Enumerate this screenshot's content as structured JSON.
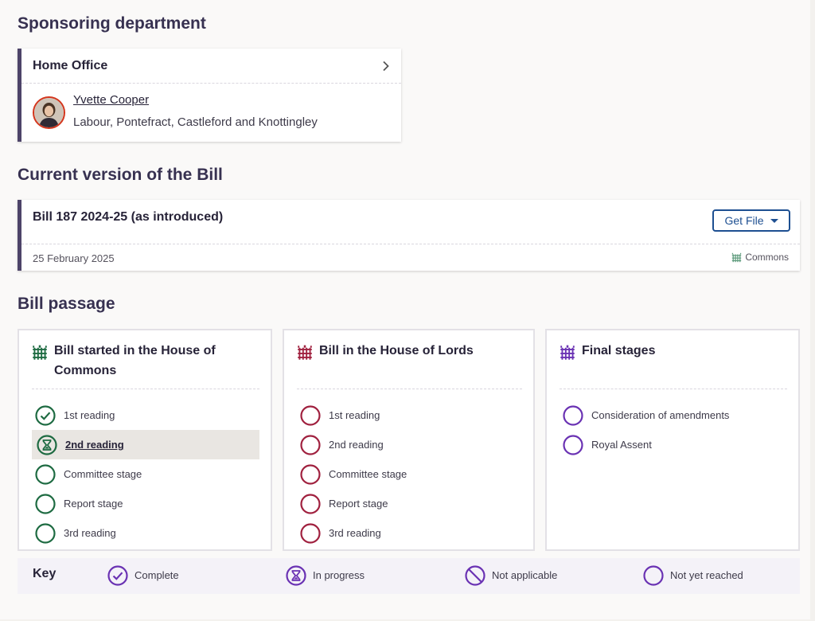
{
  "sponsoring": {
    "heading": "Sponsoring department",
    "department": "Home Office",
    "member_name": "Yvette Cooper",
    "member_party": "Labour, Pontefract, Castleford and Knottingley"
  },
  "current_version": {
    "heading": "Current version of the Bill",
    "title": "Bill 187 2024-25 (as introduced)",
    "get_file_label": "Get File",
    "date": "25 February 2025",
    "house": "Commons"
  },
  "passage": {
    "heading": "Bill passage",
    "commons": {
      "title": "Bill started in the House of Commons",
      "color": "#1e6b42",
      "stages": [
        {
          "label": "1st reading",
          "status": "complete"
        },
        {
          "label": "2nd reading",
          "status": "in-progress"
        },
        {
          "label": "Committee stage",
          "status": "not-reached"
        },
        {
          "label": "Report stage",
          "status": "not-reached"
        },
        {
          "label": "3rd reading",
          "status": "not-reached"
        }
      ]
    },
    "lords": {
      "title": "Bill in the House of Lords",
      "color": "#a0213f",
      "stages": [
        {
          "label": "1st reading",
          "status": "not-reached"
        },
        {
          "label": "2nd reading",
          "status": "not-reached"
        },
        {
          "label": "Committee stage",
          "status": "not-reached"
        },
        {
          "label": "Report stage",
          "status": "not-reached"
        },
        {
          "label": "3rd reading",
          "status": "not-reached"
        }
      ]
    },
    "final": {
      "title": "Final stages",
      "color": "#6a32b3",
      "stages": [
        {
          "label": "Consideration of amendments",
          "status": "not-reached"
        },
        {
          "label": "Royal Assent",
          "status": "not-reached"
        }
      ]
    }
  },
  "key": {
    "title": "Key",
    "color": "#6a32b3",
    "items": [
      {
        "label": "Complete",
        "icon": "check-circle-icon"
      },
      {
        "label": "In progress",
        "icon": "hourglass-circle-icon"
      },
      {
        "label": "Not applicable",
        "icon": "prohibited-circle-icon"
      },
      {
        "label": "Not yet reached",
        "icon": "empty-circle-icon"
      }
    ]
  }
}
